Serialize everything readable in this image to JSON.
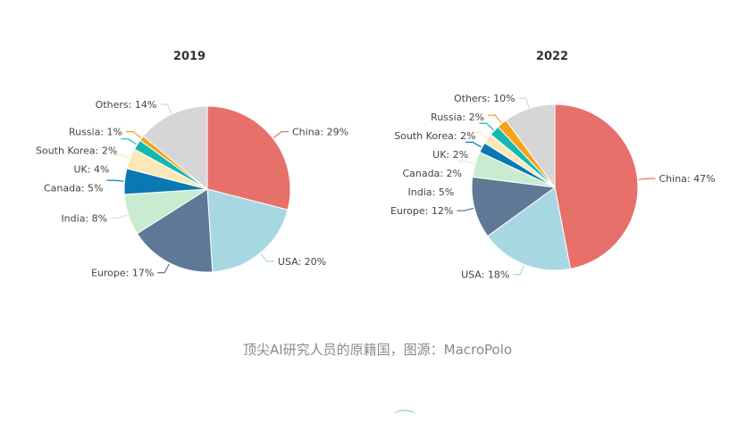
{
  "chart_data": [
    {
      "type": "pie",
      "title": "2019",
      "start_angle_deg": 0,
      "direction": "clockwise",
      "slices": [
        {
          "label": "China: 29%",
          "value": 29,
          "color": "#e8706a"
        },
        {
          "label": "USA: 20%",
          "value": 20,
          "color": "#a7d8e2"
        },
        {
          "label": "Europe: 17%",
          "value": 17,
          "color": "#5f7896"
        },
        {
          "label": "India: 8%",
          "value": 8,
          "color": "#c9ecd1"
        },
        {
          "label": "Canada: 5%",
          "value": 5,
          "color": "#0a78b3"
        },
        {
          "label": "UK: 4%",
          "value": 4,
          "color": "#fce8b6"
        },
        {
          "label": "South Korea: 2%",
          "value": 2,
          "color": "#14b8b3"
        },
        {
          "label": "Russia: 1%",
          "value": 1,
          "color": "#f7a21b"
        },
        {
          "label": "Others: 14%",
          "value": 14,
          "color": "#d6d6d6"
        }
      ]
    },
    {
      "type": "pie",
      "title": "2022",
      "start_angle_deg": 0,
      "direction": "clockwise",
      "slices": [
        {
          "label": "China: 47%",
          "value": 47,
          "color": "#e8706a"
        },
        {
          "label": "USA: 18%",
          "value": 18,
          "color": "#a7d8e2"
        },
        {
          "label": "Europe: 12%",
          "value": 12,
          "color": "#5f7896"
        },
        {
          "label": "India: 5%",
          "value": 5,
          "color": "#c9ecd1"
        },
        {
          "label": "Canada: 2%",
          "value": 2,
          "color": "#0a78b3"
        },
        {
          "label": "UK: 2%",
          "value": 2,
          "color": "#fce8b6"
        },
        {
          "label": "South Korea: 2%",
          "value": 2,
          "color": "#14b8b3"
        },
        {
          "label": "Russia: 2%",
          "value": 2,
          "color": "#f7a21b"
        },
        {
          "label": "Others: 10%",
          "value": 10,
          "color": "#d6d6d6"
        }
      ]
    }
  ],
  "caption": "顶尖AI研究人员的原籍国，图源：MacroPolo"
}
